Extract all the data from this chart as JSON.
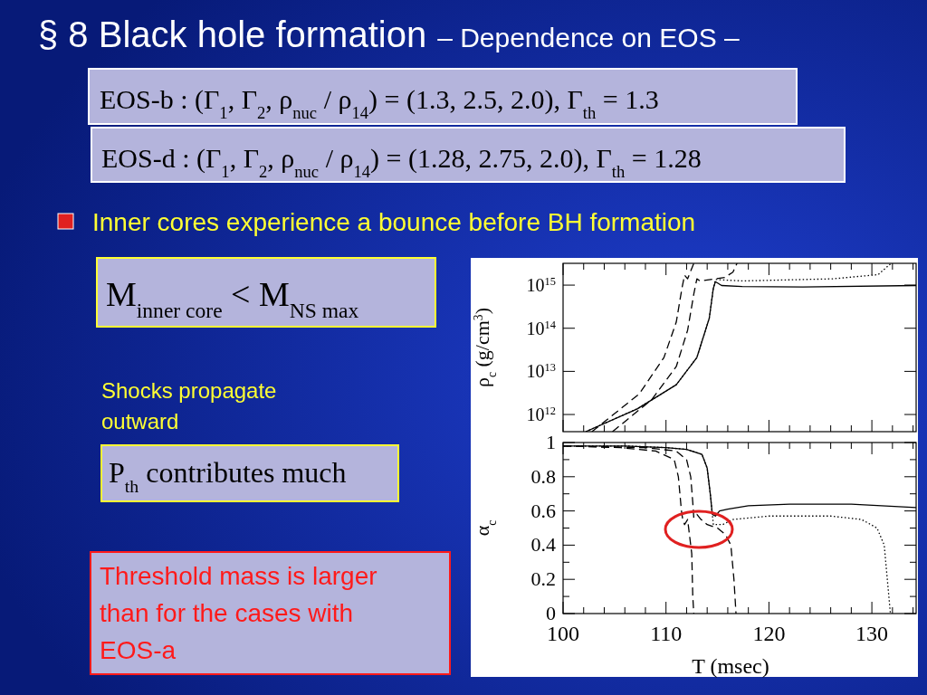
{
  "chart_data": [
    {
      "type": "line",
      "title": "§ 8  Black hole formation",
      "subtitle": "– Dependence on EOS –",
      "ylabel": "ρ$_{c}$ (g/cm$^{3}$)",
      "log": "y",
      "tick_labels": "y",
      "grid": false,
      "marker": "none",
      "xlim": [
        100,
        134.3
      ],
      "xticks": [
        100,
        {
          "value": 102,
          "label": null
        },
        {
          "value": 104,
          "label": null
        },
        {
          "value": 106,
          "label": null
        },
        {
          "value": 108,
          "label": null
        },
        110,
        {
          "value": 112,
          "label": null
        },
        {
          "value": 114,
          "label": null
        },
        {
          "value": 116,
          "label": null
        },
        {
          "value": 118,
          "label": null
        },
        120,
        {
          "value": 122,
          "label": null
        },
        {
          "value": 124,
          "label": null
        },
        {
          "value": 126,
          "label": null
        },
        {
          "value": 128,
          "label": null
        },
        130,
        {
          "value": 132,
          "label": null
        },
        {
          "value": 134,
          "label": null
        }
      ],
      "ylim": [
        400000000000.0,
        3200000000000000.0
      ],
      "yticks": [
        {
          "value": 1000000000000.0,
          "label": "10$^{12}$"
        },
        {
          "value": 10000000000000.0,
          "label": "10$^{13}$"
        },
        {
          "value": 100000000000000.0,
          "label": "10$^{14}$"
        },
        {
          "value": 1000000000000000.0,
          "label": "10$^{15}$"
        }
      ],
      "annotations": [
        "EOS-b : (Γ$_{1}$, Γ$_{2}$, ρ$_{nuc}$ / ρ$_{14}$) = (1.3, 2.5, 2.0),   Γ$_{th}$ = 1.3",
        "EOS-d : (Γ$_{1}$, Γ$_{2}$, ρ$_{nuc}$ / ρ$_{14}$) = (1.28, 2.75, 2.0),   Γ$_{th}$ = 1.28",
        "Inner cores experience a bounce before BH formation",
        "M$_{inner core}$ < M$_{NS max}$",
        "Shocks propagate outward",
        "P$_{th}$ contributes much",
        "Threshold mass is larger than for the cases with EOS-a"
      ],
      "series": [
        {
          "color": "#000000",
          "line_style": "dashed",
          "x": [
            102.8,
            107.4,
            109.8,
            111.0,
            111.55,
            111.8,
            112.1,
            112.7
          ],
          "values": [
            400000000000.0,
            3000000000000.0,
            21000000000000.0,
            140000000000000.0,
            850000000000000.0,
            1700000000000000.0,
            1400000000000000.0,
            3200000000000000.0
          ]
        },
        {
          "color": "#000000",
          "line_style": "dashed",
          "x": [
            104.8,
            108.6,
            111.0,
            112.1,
            112.7,
            113.0,
            113.3,
            115.7,
            116.5,
            116.9
          ],
          "values": [
            400000000000.0,
            2200000000000.0,
            13000000000000.0,
            90000000000000.0,
            620000000000000.0,
            1400000000000000.0,
            1250000000000000.0,
            1500000000000000.0,
            2000000000000000.0,
            3200000000000000.0
          ]
        },
        {
          "color": "#000000",
          "line_style": "solid",
          "x": [
            102.2,
            107.2,
            111.0,
            113.0,
            114.2,
            114.6,
            114.8,
            115.4,
            117.4,
            123.3,
            134.3
          ],
          "values": [
            400000000000.0,
            1350000000000.0,
            4900000000000.0,
            21000000000000.0,
            170000000000000.0,
            850000000000000.0,
            1200000000000000.0,
            980000000000000.0,
            930000000000000.0,
            910000000000000.0,
            980000000000000.0
          ]
        },
        {
          "color": "#000000",
          "line_style": "dotted",
          "x": [
            102.2,
            107.2,
            111.0,
            113.0,
            114.2,
            114.6,
            114.8,
            117.4,
            126.2,
            130.6,
            131.8
          ],
          "values": [
            400000000000.0,
            1350000000000.0,
            4900000000000.0,
            21000000000000.0,
            170000000000000.0,
            850000000000000.0,
            1350000000000000.0,
            1250000000000000.0,
            1400000000000000.0,
            1750000000000000.0,
            3100000000000000.0
          ]
        }
      ]
    },
    {
      "type": "line",
      "ylabel": "α$_{c}$",
      "xlabel": "T (msec)",
      "grid": false,
      "marker": "none",
      "xlim": [
        100,
        134.3
      ],
      "xticks": [
        100,
        {
          "value": 102,
          "label": null
        },
        {
          "value": 104,
          "label": null
        },
        {
          "value": 106,
          "label": null
        },
        {
          "value": 108,
          "label": null
        },
        110,
        {
          "value": 112,
          "label": null
        },
        {
          "value": 114,
          "label": null
        },
        {
          "value": 116,
          "label": null
        },
        {
          "value": 118,
          "label": null
        },
        120,
        {
          "value": 122,
          "label": null
        },
        {
          "value": 124,
          "label": null
        },
        {
          "value": 126,
          "label": null
        },
        {
          "value": 128,
          "label": null
        },
        130,
        {
          "value": 132,
          "label": null
        },
        {
          "value": 134,
          "label": null
        }
      ],
      "ylim": [
        0,
        1
      ],
      "yticks": [
        0,
        {
          "value": 0.1,
          "label": null
        },
        0.2,
        {
          "value": 0.3,
          "label": null
        },
        0.4,
        {
          "value": 0.5,
          "label": null
        },
        0.6,
        {
          "value": 0.7,
          "label": null
        },
        0.8,
        {
          "value": 0.9,
          "label": null
        },
        1
      ],
      "series": [
        {
          "color": "#000000",
          "line_style": "dashed",
          "x": [
            100,
            105.6,
            109.0,
            110.8,
            111.2,
            111.5,
            111.6,
            111.8,
            112.1,
            112.3,
            112.5,
            112.6,
            112.7
          ],
          "values": [
            0.98,
            0.97,
            0.95,
            0.9,
            0.8,
            0.6,
            0.56,
            0.52,
            0.55,
            0.45,
            0.35,
            0.1,
            0
          ]
        },
        {
          "color": "#000000",
          "line_style": "dashed",
          "x": [
            100,
            108,
            111,
            112,
            112.4,
            112.6,
            112.7,
            113,
            113.4,
            114,
            115,
            115.8,
            116.3,
            116.6,
            116.8
          ],
          "values": [
            0.98,
            0.97,
            0.95,
            0.9,
            0.8,
            0.65,
            0.56,
            0.58,
            0.55,
            0.52,
            0.5,
            0.46,
            0.4,
            0.2,
            0
          ]
        },
        {
          "color": "#000000",
          "line_style": "solid",
          "x": [
            100,
            106,
            110,
            112,
            113.5,
            114,
            114.3,
            114.5,
            114.8,
            115.2,
            116,
            118,
            122,
            128,
            134.3
          ],
          "values": [
            0.98,
            0.98,
            0.97,
            0.96,
            0.93,
            0.85,
            0.7,
            0.58,
            0.57,
            0.6,
            0.61,
            0.63,
            0.64,
            0.64,
            0.62
          ]
        },
        {
          "color": "#000000",
          "line_style": "dotted",
          "x": [
            100,
            106,
            110,
            112,
            113.5,
            114,
            114.3,
            114.6,
            115.5,
            116.5,
            120,
            126,
            129,
            130.5,
            131.2,
            131.5,
            131.8
          ],
          "values": [
            0.98,
            0.98,
            0.97,
            0.96,
            0.93,
            0.85,
            0.7,
            0.52,
            0.52,
            0.55,
            0.57,
            0.57,
            0.55,
            0.5,
            0.4,
            0.2,
            0
          ]
        }
      ]
    }
  ]
}
